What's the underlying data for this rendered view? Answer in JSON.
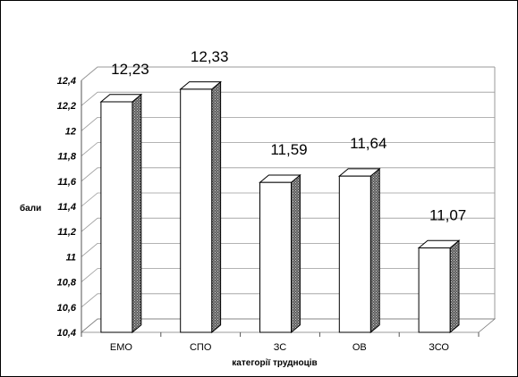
{
  "chart_data": {
    "type": "bar",
    "style": "3d-column",
    "categories": [
      "ЕМО",
      "СПО",
      "ЗС",
      "ОВ",
      "ЗСО"
    ],
    "values": [
      12.23,
      12.33,
      11.59,
      11.64,
      11.07
    ],
    "data_labels": [
      "12,23",
      "12,33",
      "11,59",
      "11,64",
      "11,07"
    ],
    "yticks": [
      10.4,
      10.6,
      10.8,
      11,
      11.2,
      11.4,
      11.6,
      11.8,
      12,
      12.2,
      12.4
    ],
    "ytick_labels": [
      "10,4",
      "10,6",
      "10,8",
      "11",
      "11,2",
      "11,4",
      "11,6",
      "11,8",
      "12",
      "12,2",
      "12,4"
    ],
    "ylim": [
      10.4,
      12.4
    ],
    "xlabel": "категорії трудноців",
    "ylabel": "бали",
    "grid": true,
    "legend": "none",
    "colors": {
      "bar_face": "#ffffff",
      "bar_side": "#8c8c8c",
      "outline": "#000000",
      "grid": "#9a9a9a"
    }
  }
}
